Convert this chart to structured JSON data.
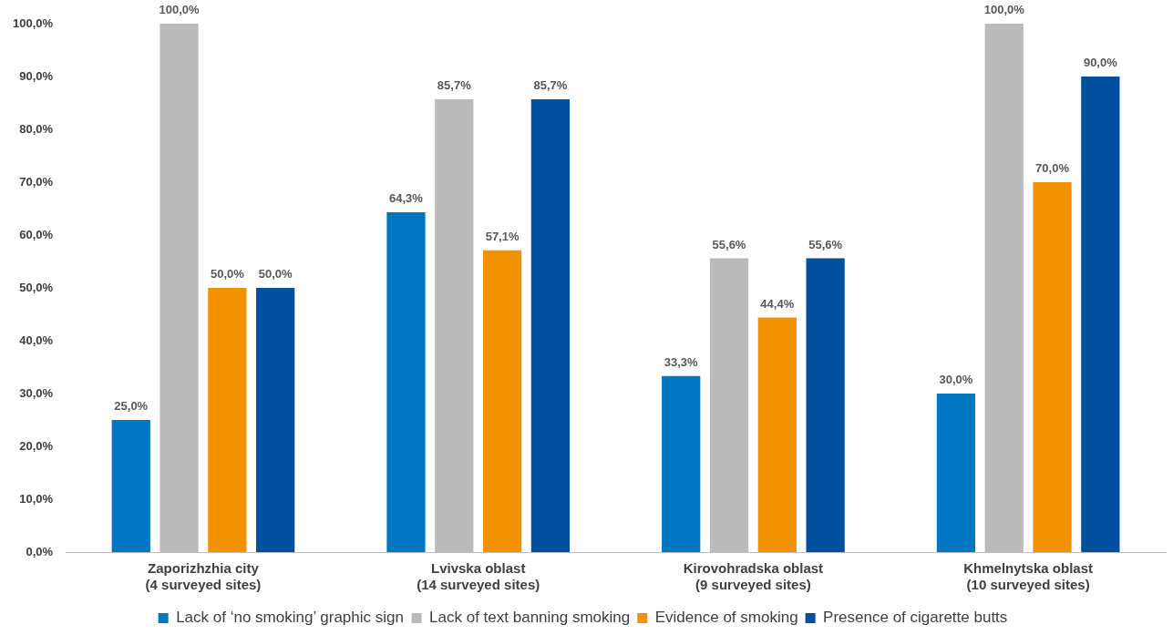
{
  "chart_data": {
    "type": "bar",
    "categories": [
      "Zaporizhzhia city\n(4 surveyed sites)",
      "Lvivska oblast\n(14 surveyed sites)",
      "Kirovohradska oblast\n(9 surveyed sites)",
      "Khmelnytska oblast\n(10 surveyed sites)"
    ],
    "series": [
      {
        "name": "Lack of ‘no smoking’ graphic sign",
        "color": "#0077c0",
        "values": [
          25.0,
          64.3,
          33.3,
          30.0
        ],
        "value_labels": [
          "25,0%",
          "64,3%",
          "33,3%",
          "30,0%"
        ]
      },
      {
        "name": "Lack of text banning smoking",
        "color": "#bbbbbb",
        "values": [
          100.0,
          85.7,
          55.6,
          100.0
        ],
        "value_labels": [
          "100,0%",
          "85,7%",
          "55,6%",
          "100,0%"
        ]
      },
      {
        "name": "Evidence of smoking",
        "color": "#f39200",
        "values": [
          50.0,
          57.1,
          44.4,
          70.0
        ],
        "value_labels": [
          "50,0%",
          "57,1%",
          "44,4%",
          "70,0%"
        ]
      },
      {
        "name": "Presence of cigarette butts",
        "color": "#0050a0",
        "values": [
          50.0,
          85.7,
          55.6,
          90.0
        ],
        "value_labels": [
          "50,0%",
          "85,7%",
          "55,6%",
          "90,0%"
        ]
      }
    ],
    "ylim": [
      0,
      100
    ],
    "yticks": [
      {
        "value": 0,
        "label": "0,0%"
      },
      {
        "value": 10,
        "label": "10,0%"
      },
      {
        "value": 20,
        "label": "20,0%"
      },
      {
        "value": 30,
        "label": "30,0%"
      },
      {
        "value": 40,
        "label": "40,0%"
      },
      {
        "value": 50,
        "label": "50,0%"
      },
      {
        "value": 60,
        "label": "60,0%"
      },
      {
        "value": 70,
        "label": "70,0%"
      },
      {
        "value": 80,
        "label": "80,0%"
      },
      {
        "value": 90,
        "label": "90,0%"
      },
      {
        "value": 100,
        "label": "100,0%"
      }
    ],
    "grid": false,
    "legend": "bottom"
  }
}
